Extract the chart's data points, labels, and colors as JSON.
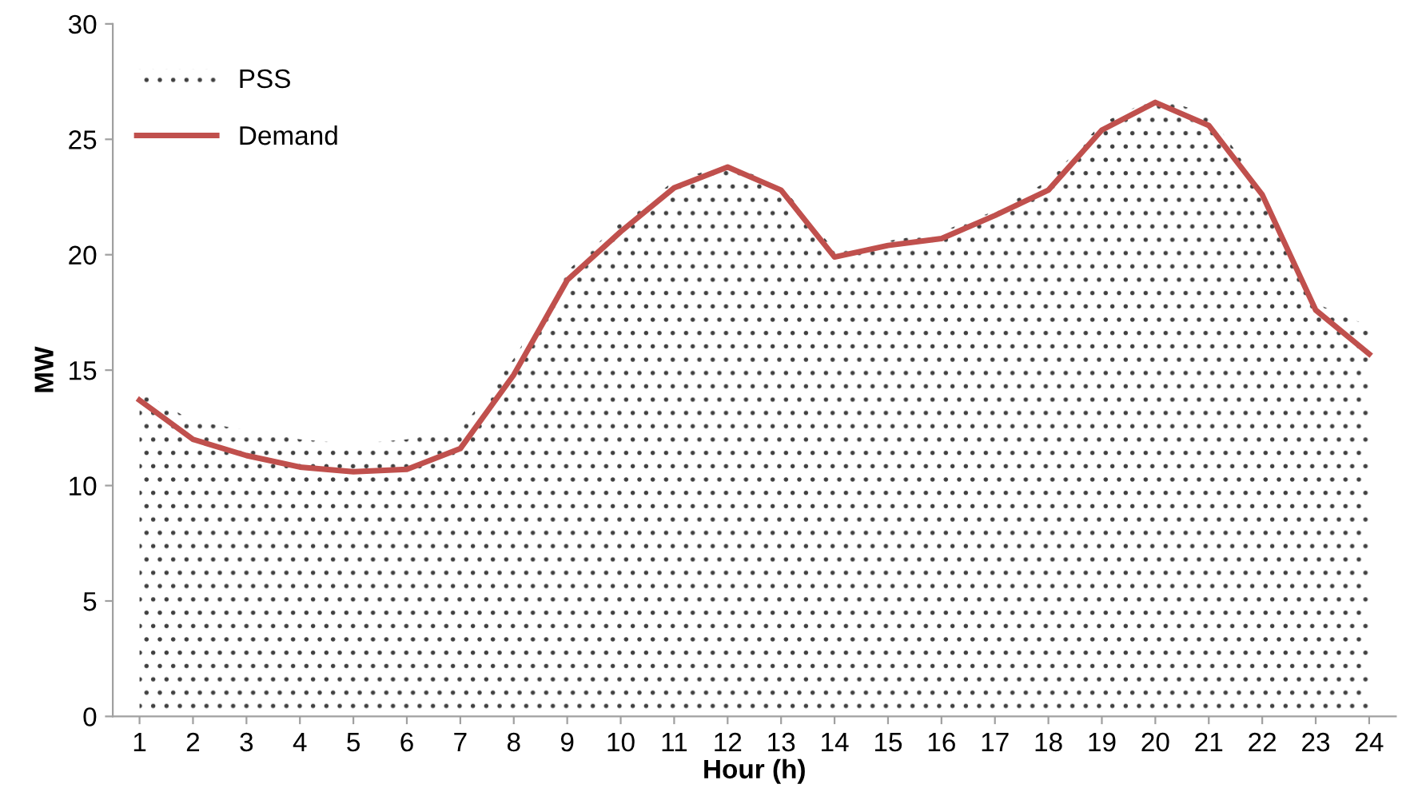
{
  "chart_data": {
    "type": "line",
    "xlabel": "Hour (h)",
    "ylabel": "MW",
    "categories": [
      "1",
      "2",
      "3",
      "4",
      "5",
      "6",
      "7",
      "8",
      "9",
      "10",
      "11",
      "12",
      "13",
      "14",
      "15",
      "16",
      "17",
      "18",
      "19",
      "20",
      "21",
      "22",
      "23",
      "24"
    ],
    "series": [
      {
        "name": "PSS",
        "type": "area",
        "color": "#404040",
        "values": [
          14.1,
          12.8,
          12.4,
          12.0,
          11.8,
          12.0,
          12.4,
          15.5,
          19.3,
          21.4,
          23.2,
          23.9,
          23.0,
          20.2,
          20.6,
          21.0,
          21.9,
          23.2,
          25.7,
          26.8,
          26.1,
          22.9,
          17.9,
          16.9
        ]
      },
      {
        "name": "Demand",
        "color": "#c0504d",
        "values": [
          13.7,
          12.0,
          11.3,
          10.8,
          10.6,
          10.7,
          11.6,
          14.8,
          18.9,
          21.0,
          22.9,
          23.8,
          22.8,
          19.9,
          20.4,
          20.7,
          21.7,
          22.8,
          25.4,
          26.6,
          25.6,
          22.6,
          17.6,
          15.7
        ]
      }
    ],
    "ylim": [
      0,
      30
    ],
    "yticks": [
      0,
      5,
      10,
      15,
      20,
      25,
      30
    ],
    "grid": false,
    "legend": "top left",
    "marker": "none",
    "line_style": "solid"
  }
}
